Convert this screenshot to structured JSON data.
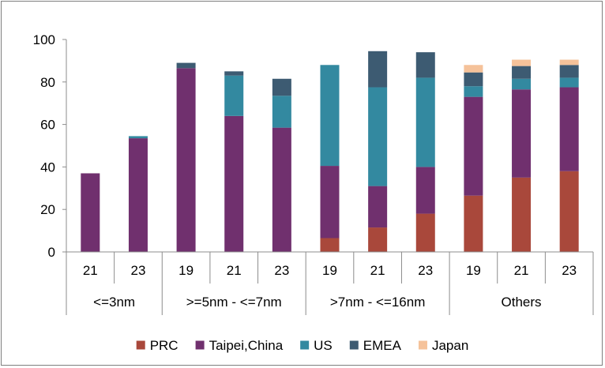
{
  "chart_data": {
    "type": "bar",
    "stacked": true,
    "ylim": [
      0,
      100
    ],
    "yticks": [
      0,
      20,
      40,
      60,
      80,
      100
    ],
    "grid": false,
    "legend_position": "bottom",
    "groups": [
      {
        "label": "<=3nm",
        "categories": [
          "21",
          "23"
        ]
      },
      {
        "label": ">=5nm - <=7nm",
        "categories": [
          "19",
          "21",
          "23"
        ]
      },
      {
        "label": ">7nm - <=16nm",
        "categories": [
          "19",
          "21",
          "23"
        ]
      },
      {
        "label": "Others",
        "categories": [
          "19",
          "21",
          "23"
        ]
      }
    ],
    "categories": [
      "21",
      "23",
      "19",
      "21",
      "23",
      "19",
      "21",
      "23",
      "19",
      "21",
      "23"
    ],
    "series": [
      {
        "name": "PRC",
        "color": "#a9483b",
        "values": [
          0,
          0,
          0,
          0,
          0,
          6.5,
          11.5,
          18,
          26.5,
          35,
          38
        ]
      },
      {
        "name": "Taipei,China",
        "color": "#70306e",
        "values": [
          37,
          53.5,
          86.5,
          64,
          58.5,
          34,
          19.5,
          22,
          46.5,
          41.5,
          39.5
        ]
      },
      {
        "name": "US",
        "color": "#3389a0",
        "values": [
          0,
          1,
          0,
          19,
          15,
          47.5,
          46.5,
          42,
          5,
          5,
          4.5
        ]
      },
      {
        "name": "EMEA",
        "color": "#3d5b72",
        "values": [
          0,
          0,
          2.5,
          2,
          8,
          0,
          17,
          12,
          6.5,
          6,
          6
        ]
      },
      {
        "name": "Japan",
        "color": "#f5c29a",
        "values": [
          0,
          0,
          0,
          0,
          0,
          0,
          0,
          0,
          3.5,
          3,
          2.5
        ]
      }
    ]
  }
}
